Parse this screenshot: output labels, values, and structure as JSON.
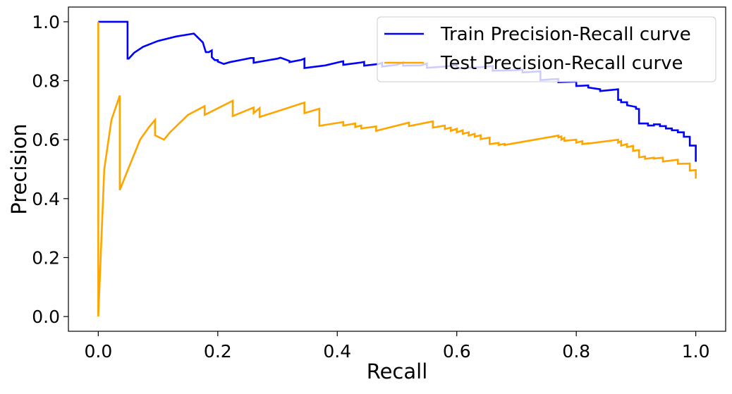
{
  "chart_data": {
    "type": "line",
    "title": "",
    "xlabel": "Recall",
    "ylabel": "Precision",
    "xlim": [
      -0.05,
      1.05
    ],
    "ylim": [
      -0.05,
      1.05
    ],
    "xticks": [
      0.0,
      0.2,
      0.4,
      0.6,
      0.8,
      1.0
    ],
    "xtick_labels": [
      "0.0",
      "0.2",
      "0.4",
      "0.6",
      "0.8",
      "1.0"
    ],
    "yticks": [
      0.0,
      0.2,
      0.4,
      0.6,
      0.8,
      1.0
    ],
    "ytick_labels": [
      "0.0",
      "0.2",
      "0.4",
      "0.6",
      "0.8",
      "1.0"
    ],
    "grid": false,
    "legend_position": "top-right",
    "series": [
      {
        "name": "Train Precision-Recall curve",
        "color": "#0000ff",
        "x": [
          0.0,
          0.0,
          0.049,
          0.049,
          0.051,
          0.06,
          0.075,
          0.1,
          0.13,
          0.16,
          0.175,
          0.175,
          0.18,
          0.185,
          0.19,
          0.19,
          0.195,
          0.2,
          0.2,
          0.21,
          0.22,
          0.24,
          0.255,
          0.26,
          0.26,
          0.28,
          0.3,
          0.305,
          0.32,
          0.32,
          0.34,
          0.345,
          0.345,
          0.38,
          0.405,
          0.41,
          0.41,
          0.44,
          0.445,
          0.445,
          0.47,
          0.475,
          0.475,
          0.5,
          0.51,
          0.51,
          0.54,
          0.55,
          0.55,
          0.58,
          0.6,
          0.6,
          0.64,
          0.66,
          0.66,
          0.7,
          0.71,
          0.71,
          0.74,
          0.74,
          0.76,
          0.77,
          0.77,
          0.8,
          0.8,
          0.82,
          0.82,
          0.84,
          0.84,
          0.87,
          0.87,
          0.875,
          0.875,
          0.885,
          0.885,
          0.9,
          0.9,
          0.905,
          0.905,
          0.92,
          0.92,
          0.93,
          0.93,
          0.94,
          0.94,
          0.95,
          0.95,
          0.96,
          0.96,
          0.97,
          0.97,
          0.98,
          0.98,
          0.99,
          0.99,
          1.0,
          1.0
        ],
        "y": [
          1.0,
          1.0,
          1.0,
          0.875,
          0.875,
          0.895,
          0.915,
          0.935,
          0.95,
          0.96,
          0.93,
          0.93,
          0.897,
          0.897,
          0.903,
          0.88,
          0.87,
          0.87,
          0.865,
          0.857,
          0.863,
          0.871,
          0.877,
          0.877,
          0.861,
          0.868,
          0.875,
          0.878,
          0.867,
          0.863,
          0.871,
          0.875,
          0.843,
          0.852,
          0.864,
          0.866,
          0.854,
          0.862,
          0.864,
          0.851,
          0.857,
          0.861,
          0.848,
          0.854,
          0.862,
          0.851,
          0.852,
          0.858,
          0.844,
          0.848,
          0.853,
          0.842,
          0.846,
          0.85,
          0.834,
          0.836,
          0.838,
          0.828,
          0.832,
          0.802,
          0.805,
          0.806,
          0.795,
          0.797,
          0.782,
          0.784,
          0.777,
          0.771,
          0.765,
          0.771,
          0.735,
          0.735,
          0.727,
          0.727,
          0.717,
          0.711,
          0.705,
          0.704,
          0.655,
          0.655,
          0.648,
          0.648,
          0.652,
          0.652,
          0.646,
          0.646,
          0.638,
          0.638,
          0.632,
          0.632,
          0.625,
          0.625,
          0.61,
          0.61,
          0.58,
          0.58,
          0.525
        ]
      },
      {
        "name": "Test Precision-Recall curve",
        "color": "#ffa500",
        "x": [
          0.0,
          0.0,
          0.0,
          0.01,
          0.022,
          0.036,
          0.036,
          0.05,
          0.07,
          0.085,
          0.095,
          0.095,
          0.11,
          0.12,
          0.15,
          0.178,
          0.178,
          0.225,
          0.225,
          0.26,
          0.26,
          0.27,
          0.27,
          0.345,
          0.345,
          0.37,
          0.37,
          0.41,
          0.41,
          0.43,
          0.43,
          0.44,
          0.44,
          0.465,
          0.465,
          0.52,
          0.52,
          0.56,
          0.56,
          0.58,
          0.58,
          0.59,
          0.59,
          0.6,
          0.6,
          0.61,
          0.61,
          0.62,
          0.62,
          0.63,
          0.63,
          0.64,
          0.64,
          0.655,
          0.655,
          0.67,
          0.67,
          0.68,
          0.68,
          0.77,
          0.77,
          0.775,
          0.775,
          0.78,
          0.78,
          0.8,
          0.8,
          0.81,
          0.81,
          0.82,
          0.82,
          0.87,
          0.87,
          0.875,
          0.875,
          0.885,
          0.885,
          0.895,
          0.895,
          0.905,
          0.905,
          0.915,
          0.915,
          0.93,
          0.93,
          0.945,
          0.945,
          0.97,
          0.97,
          0.99,
          0.99,
          1.0,
          1.0
        ],
        "y": [
          1.0,
          0.0,
          0.0,
          0.5,
          0.667,
          0.75,
          0.429,
          0.5,
          0.6,
          0.643,
          0.667,
          0.615,
          0.6,
          0.625,
          0.684,
          0.714,
          0.684,
          0.732,
          0.68,
          0.709,
          0.69,
          0.707,
          0.677,
          0.726,
          0.69,
          0.705,
          0.647,
          0.66,
          0.648,
          0.655,
          0.643,
          0.648,
          0.638,
          0.645,
          0.63,
          0.658,
          0.646,
          0.662,
          0.641,
          0.648,
          0.636,
          0.641,
          0.63,
          0.637,
          0.625,
          0.632,
          0.62,
          0.625,
          0.614,
          0.62,
          0.61,
          0.615,
          0.602,
          0.607,
          0.585,
          0.589,
          0.582,
          0.586,
          0.582,
          0.614,
          0.608,
          0.611,
          0.6,
          0.606,
          0.596,
          0.6,
          0.59,
          0.595,
          0.585,
          0.588,
          0.587,
          0.6,
          0.59,
          0.595,
          0.58,
          0.585,
          0.575,
          0.579,
          0.562,
          0.565,
          0.54,
          0.543,
          0.535,
          0.539,
          0.536,
          0.539,
          0.526,
          0.532,
          0.518,
          0.519,
          0.495,
          0.497,
          0.468
        ]
      }
    ]
  }
}
